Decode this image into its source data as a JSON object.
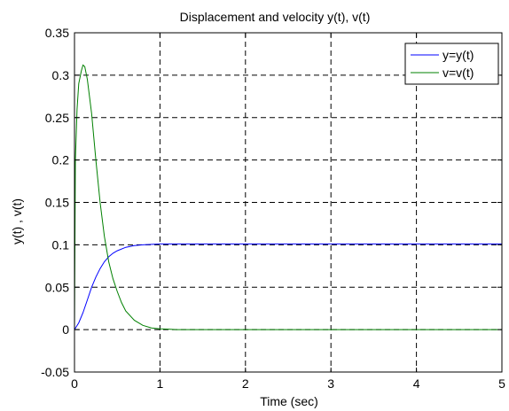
{
  "chart_data": {
    "type": "line",
    "title": "Displacement and velocity  y(t), v(t)",
    "xlabel": "Time (sec)",
    "ylabel": "y(t) , v(t)",
    "xlim": [
      0,
      5
    ],
    "ylim": [
      -0.05,
      0.35
    ],
    "xticks": [
      0,
      1,
      2,
      3,
      4,
      5
    ],
    "xtick_labels": [
      "0",
      "1",
      "2",
      "3",
      "4",
      "5"
    ],
    "yticks": [
      -0.05,
      0,
      0.05,
      0.1,
      0.15,
      0.2,
      0.25,
      0.3,
      0.35
    ],
    "ytick_labels": [
      "-0.05",
      "0",
      "0.05",
      "0.1",
      "0.15",
      "0.2",
      "0.25",
      "0.3",
      "0.35"
    ],
    "grid": true,
    "legend_position": "top-right",
    "series": [
      {
        "name": "y=y(t)",
        "color": "#0000ff",
        "x": [
          0,
          0.05,
          0.1,
          0.15,
          0.2,
          0.25,
          0.3,
          0.35,
          0.4,
          0.45,
          0.5,
          0.6,
          0.7,
          0.8,
          0.9,
          1.0,
          1.2,
          1.5,
          2.0,
          3.0,
          4.0,
          5.0
        ],
        "y": [
          0,
          0.008,
          0.02,
          0.035,
          0.05,
          0.062,
          0.072,
          0.08,
          0.086,
          0.09,
          0.093,
          0.097,
          0.099,
          0.1,
          0.1005,
          0.101,
          0.101,
          0.101,
          0.101,
          0.101,
          0.101,
          0.101
        ]
      },
      {
        "name": "v=v(t)",
        "color": "#008000",
        "x": [
          0,
          0.01,
          0.03,
          0.05,
          0.08,
          0.1,
          0.12,
          0.15,
          0.2,
          0.25,
          0.3,
          0.35,
          0.4,
          0.45,
          0.5,
          0.55,
          0.6,
          0.7,
          0.8,
          0.9,
          1.0,
          1.1,
          1.2,
          1.5,
          2.0,
          3.0,
          4.0,
          5.0
        ],
        "y": [
          0,
          0.2,
          0.26,
          0.29,
          0.305,
          0.312,
          0.31,
          0.295,
          0.255,
          0.2,
          0.15,
          0.11,
          0.08,
          0.06,
          0.045,
          0.032,
          0.022,
          0.011,
          0.005,
          0.002,
          0.001,
          0.0005,
          0,
          0,
          0,
          0,
          0,
          0
        ]
      }
    ]
  }
}
